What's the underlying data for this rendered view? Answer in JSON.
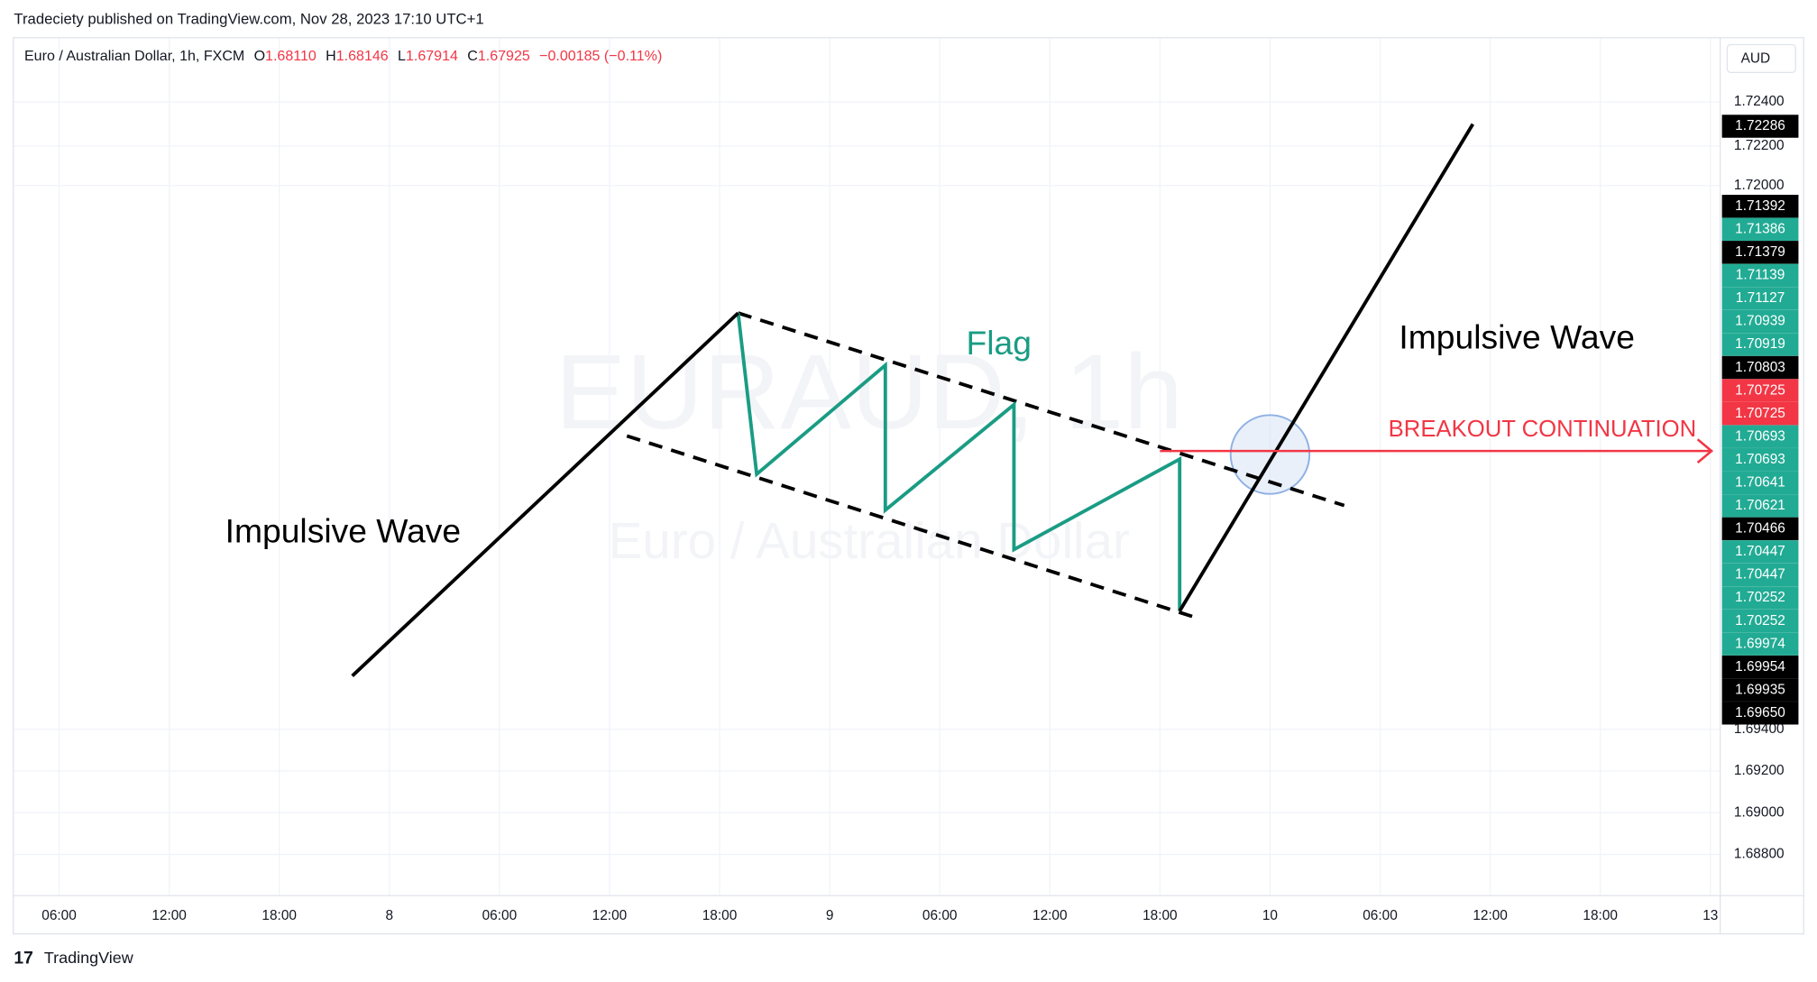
{
  "header": {
    "title": "Tradeciety published on TradingView.com, Nov 28, 2023 17:10 UTC+1"
  },
  "legend": {
    "symbol": "Euro / Australian Dollar, 1h, FXCM",
    "open_label": "O",
    "open": "1.68110",
    "high_label": "H",
    "high": "1.68146",
    "low_label": "L",
    "low": "1.67914",
    "close_label": "C",
    "close": "1.67925",
    "change": "−0.00185 (−0.11%)"
  },
  "currency": "AUD",
  "price_scale": {
    "ticks": [
      "1.72400",
      "1.72200",
      "1.72000",
      "1.69400",
      "1.69200",
      "1.69000",
      "1.68800"
    ],
    "labels": [
      {
        "text": "1.72286",
        "color": "#000000"
      },
      {
        "text": "1.71392",
        "color": "#000000"
      },
      {
        "text": "1.71386",
        "color": "#22ab94"
      },
      {
        "text": "1.71379",
        "color": "#000000"
      },
      {
        "text": "1.71139",
        "color": "#22ab94"
      },
      {
        "text": "1.71127",
        "color": "#22ab94"
      },
      {
        "text": "1.70939",
        "color": "#22ab94"
      },
      {
        "text": "1.70919",
        "color": "#22ab94"
      },
      {
        "text": "1.70803",
        "color": "#000000"
      },
      {
        "text": "1.70725",
        "color": "#f23645"
      },
      {
        "text": "1.70725",
        "color": "#f23645"
      },
      {
        "text": "1.70693",
        "color": "#22ab94"
      },
      {
        "text": "1.70693",
        "color": "#22ab94"
      },
      {
        "text": "1.70641",
        "color": "#22ab94"
      },
      {
        "text": "1.70621",
        "color": "#22ab94"
      },
      {
        "text": "1.70466",
        "color": "#000000"
      },
      {
        "text": "1.70447",
        "color": "#22ab94"
      },
      {
        "text": "1.70447",
        "color": "#22ab94"
      },
      {
        "text": "1.70252",
        "color": "#22ab94"
      },
      {
        "text": "1.70252",
        "color": "#22ab94"
      },
      {
        "text": "1.69974",
        "color": "#22ab94"
      },
      {
        "text": "1.69954",
        "color": "#000000"
      },
      {
        "text": "1.69935",
        "color": "#000000"
      },
      {
        "text": "1.69650",
        "color": "#000000"
      }
    ]
  },
  "time_scale": {
    "ticks": [
      "06:00",
      "12:00",
      "18:00",
      "8",
      "06:00",
      "12:00",
      "18:00",
      "9",
      "06:00",
      "12:00",
      "18:00",
      "10",
      "06:00",
      "12:00",
      "18:00",
      "13"
    ]
  },
  "watermark": {
    "symbol": "EURAUD, 1h",
    "description": "Euro / Australian Dollar"
  },
  "annotations": {
    "flag": "Flag",
    "impulse_left": "Impulsive Wave",
    "impulse_right": "Impulsive Wave",
    "breakout": "BREAKOUT CONTINUATION"
  },
  "footer": {
    "brand": "TradingView"
  }
}
